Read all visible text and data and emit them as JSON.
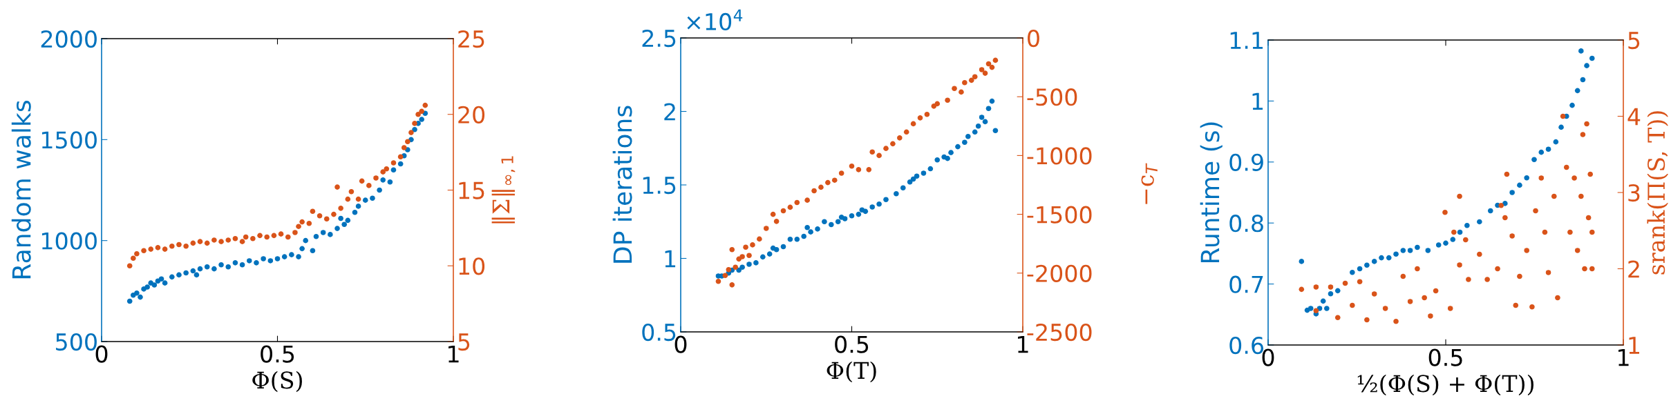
{
  "chart_data": [
    {
      "type": "scatter",
      "xlabel": "Φ(S)",
      "ylabel": "Random walks",
      "y2label": "‖Σ‖$_{∞,1}$",
      "marker": "circle",
      "grid": false,
      "xlim": [
        0,
        1
      ],
      "xticks": [
        0,
        0.5,
        1
      ],
      "ylim": [
        500,
        2000
      ],
      "yticks": [
        500,
        1000,
        1500,
        2000
      ],
      "y2lim": [
        5,
        25
      ],
      "y2ticks": [
        5,
        10,
        15,
        20,
        25
      ],
      "series": [
        {
          "axis": "y",
          "color": "#0072bd",
          "x": [
            0.08,
            0.09,
            0.1,
            0.11,
            0.12,
            0.13,
            0.14,
            0.15,
            0.16,
            0.17,
            0.18,
            0.2,
            0.22,
            0.24,
            0.26,
            0.27,
            0.28,
            0.3,
            0.32,
            0.34,
            0.36,
            0.38,
            0.4,
            0.42,
            0.44,
            0.46,
            0.48,
            0.5,
            0.52,
            0.54,
            0.56,
            0.57,
            0.58,
            0.6,
            0.61,
            0.63,
            0.65,
            0.67,
            0.68,
            0.69,
            0.7,
            0.72,
            0.73,
            0.75,
            0.77,
            0.79,
            0.8,
            0.82,
            0.83,
            0.85,
            0.86,
            0.87,
            0.88,
            0.89,
            0.9,
            0.91,
            0.92
          ],
          "values": [
            700,
            730,
            740,
            720,
            760,
            770,
            790,
            780,
            800,
            810,
            790,
            820,
            830,
            840,
            850,
            830,
            860,
            870,
            860,
            880,
            870,
            890,
            880,
            900,
            890,
            910,
            900,
            910,
            920,
            930,
            920,
            960,
            1000,
            950,
            1020,
            1040,
            1030,
            1060,
            1110,
            1080,
            1100,
            1140,
            1170,
            1200,
            1210,
            1250,
            1300,
            1290,
            1350,
            1380,
            1420,
            1450,
            1500,
            1550,
            1580,
            1600,
            1630
          ]
        },
        {
          "axis": "y2",
          "color": "#d95319",
          "x": [
            0.08,
            0.09,
            0.1,
            0.12,
            0.14,
            0.16,
            0.18,
            0.2,
            0.22,
            0.24,
            0.26,
            0.28,
            0.3,
            0.32,
            0.34,
            0.36,
            0.38,
            0.4,
            0.41,
            0.43,
            0.45,
            0.47,
            0.49,
            0.51,
            0.53,
            0.55,
            0.56,
            0.57,
            0.59,
            0.6,
            0.62,
            0.64,
            0.66,
            0.67,
            0.68,
            0.7,
            0.71,
            0.73,
            0.74,
            0.76,
            0.78,
            0.8,
            0.81,
            0.83,
            0.85,
            0.86,
            0.87,
            0.88,
            0.89,
            0.9,
            0.91,
            0.92
          ],
          "values": [
            10,
            10.5,
            10.8,
            11,
            11.1,
            11.2,
            11.1,
            11.3,
            11.4,
            11.3,
            11.5,
            11.6,
            11.5,
            11.7,
            11.6,
            11.7,
            11.8,
            11.6,
            11.9,
            11.8,
            12,
            11.9,
            12,
            12.1,
            11.9,
            12.2,
            12.6,
            12.9,
            12.8,
            13.6,
            13.3,
            13.1,
            13.4,
            15.2,
            13.8,
            14.4,
            14.9,
            14.4,
            15.6,
            15.3,
            15.8,
            16.2,
            16.4,
            16.8,
            17.2,
            17.8,
            18.2,
            18.8,
            19.4,
            20,
            20.2,
            20.6
          ]
        }
      ]
    },
    {
      "type": "scatter",
      "xlabel": "Φ(T)",
      "ylabel": "DP iterations",
      "y2label": "−c$_{T}$",
      "marker": "circle",
      "grid": false,
      "annotations": [
        "×10$^{4}$"
      ],
      "xlim": [
        0,
        1
      ],
      "xticks": [
        0,
        0.5,
        1
      ],
      "ylim": [
        0.5,
        2.5
      ],
      "yticks": [
        0.5,
        1,
        1.5,
        2,
        2.5
      ],
      "y2lim": [
        -2500,
        0
      ],
      "y2ticks": [
        -2500,
        -2000,
        -1500,
        -1000,
        -500,
        0
      ],
      "series": [
        {
          "axis": "y",
          "color": "#0072bd",
          "x": [
            0.11,
            0.12,
            0.14,
            0.15,
            0.16,
            0.17,
            0.18,
            0.2,
            0.22,
            0.24,
            0.26,
            0.27,
            0.28,
            0.3,
            0.32,
            0.34,
            0.36,
            0.37,
            0.38,
            0.4,
            0.42,
            0.44,
            0.46,
            0.47,
            0.48,
            0.5,
            0.52,
            0.53,
            0.54,
            0.56,
            0.58,
            0.6,
            0.63,
            0.65,
            0.67,
            0.68,
            0.69,
            0.71,
            0.73,
            0.75,
            0.77,
            0.78,
            0.79,
            0.81,
            0.83,
            0.84,
            0.86,
            0.87,
            0.88,
            0.89,
            0.9,
            0.91,
            0.92
          ],
          "values": [
            0.88,
            0.88,
            0.9,
            0.92,
            null,
            0.92,
            0.94,
            0.96,
            0.97,
            1.01,
            1.03,
            1.07,
            1.06,
            1.08,
            1.13,
            1.13,
            1.15,
            1.21,
            1.18,
            1.2,
            1.25,
            1.23,
            1.25,
            1.28,
            1.27,
            1.29,
            1.3,
            1.33,
            1.32,
            1.35,
            1.37,
            1.4,
            1.44,
            1.48,
            1.52,
            1.54,
            1.56,
            1.58,
            1.61,
            1.67,
            1.69,
            1.68,
            1.72,
            1.76,
            1.79,
            1.83,
            1.86,
            1.9,
            1.96,
            1.93,
            2.02,
            2.07,
            1.87
          ]
        },
        {
          "axis": "y2",
          "color": "#d95319",
          "x": [
            0.11,
            0.13,
            0.14,
            0.15,
            0.15,
            0.16,
            0.17,
            0.18,
            0.19,
            0.2,
            0.21,
            0.23,
            0.25,
            0.27,
            0.28,
            0.3,
            0.32,
            0.34,
            0.37,
            0.39,
            0.41,
            0.43,
            0.45,
            0.47,
            0.5,
            0.52,
            0.55,
            0.56,
            0.58,
            0.6,
            0.62,
            0.64,
            0.66,
            0.68,
            0.7,
            0.72,
            0.74,
            0.75,
            0.78,
            0.8,
            0.82,
            0.83,
            0.85,
            0.86,
            0.88,
            0.89,
            0.9,
            0.91,
            0.92
          ],
          "values": [
            -2070,
            -2020,
            -1970,
            -2100,
            -1800,
            -1950,
            -1880,
            -1860,
            -1780,
            -1850,
            -1760,
            -1710,
            -1620,
            -1500,
            -1560,
            -1470,
            -1440,
            -1400,
            -1380,
            -1300,
            -1270,
            -1230,
            -1210,
            -1150,
            -1090,
            -1120,
            -1120,
            -970,
            -1000,
            -940,
            -900,
            -850,
            -800,
            -730,
            -680,
            -650,
            -580,
            -560,
            -530,
            -430,
            -460,
            -380,
            -360,
            -330,
            -270,
            -300,
            -220,
            -250,
            -190
          ]
        }
      ]
    },
    {
      "type": "scatter",
      "xlabel": "½(Φ(S) + Φ(T))",
      "ylabel": "Runtime (s)",
      "y2label": "srank(Π(S, T))",
      "marker": "circle",
      "grid": false,
      "xlim": [
        0,
        1
      ],
      "xticks": [
        0,
        0.5,
        1
      ],
      "ylim": [
        0.6,
        1.1
      ],
      "yticks": [
        0.6,
        0.7,
        0.8,
        0.9,
        1,
        1.1
      ],
      "y2lim": [
        1,
        5
      ],
      "y2ticks": [
        1,
        2,
        3,
        4,
        5
      ],
      "series": [
        {
          "axis": "y",
          "color": "#0072bd",
          "x": [
            0.094,
            0.11,
            0.12,
            0.135,
            0.145,
            0.155,
            0.165,
            0.176,
            0.196,
            0.217,
            0.237,
            0.258,
            0.278,
            0.299,
            0.319,
            0.34,
            0.36,
            0.38,
            0.4,
            0.42,
            0.45,
            0.48,
            0.5,
            0.52,
            0.54,
            0.56,
            0.595,
            0.626,
            0.646,
            0.667,
            0.687,
            0.708,
            0.728,
            0.749,
            0.769,
            0.789,
            0.81,
            0.825,
            0.84,
            0.856,
            0.871,
            0.881,
            0.886,
            0.897,
            0.912
          ],
          "values": [
            0.737,
            0.657,
            0.66,
            0.651,
            0.66,
            0.672,
            0.66,
            0.684,
            0.689,
            null,
            0.719,
            0.725,
            0.731,
            0.737,
            0.743,
            0.743,
            0.749,
            0.755,
            0.755,
            0.76,
            0.755,
            0.764,
            0.767,
            0.773,
            0.785,
            0.796,
            0.802,
            0.82,
            0.829,
            0.832,
            0.85,
            0.862,
            0.874,
            0.904,
            0.916,
            0.921,
            0.933,
            0.957,
            0.975,
            0.993,
            1.017,
            1.082,
            1.035,
            1.058,
            1.07
          ]
        },
        {
          "axis": "y2",
          "color": "#d95319",
          "x": [
            0.094,
            0.135,
            0.176,
            0.217,
            0.258,
            0.135,
            0.196,
            0.237,
            0.278,
            0.299,
            0.33,
            0.36,
            0.38,
            0.4,
            0.42,
            0.44,
            0.457,
            0.472,
            0.498,
            0.513,
            0.523,
            0.539,
            0.539,
            0.556,
            0.564,
            0.595,
            0.617,
            0.646,
            0.656,
            0.667,
            0.672,
            0.687,
            0.697,
            0.708,
            0.728,
            0.743,
            0.753,
            0.769,
            0.779,
            0.789,
            0.805,
            0.815,
            0.83,
            0.84,
            0.85,
            0.862,
            0.871,
            0.881,
            0.886,
            0.891,
            0.897,
            0.902,
            0.907,
            0.912,
            0.912
          ],
          "values": [
            1.73,
            1.76,
            1.76,
            1.81,
            1.83,
            1.45,
            1.36,
            1.52,
            1.33,
            1.67,
            1.48,
            1.31,
            1.9,
            1.57,
            2.0,
            1.62,
            1.38,
            1.71,
            2.74,
            1.48,
            2.48,
            2.95,
            2.05,
            2.38,
            1.86,
            2.19,
            1.86,
            2.0,
            2.83,
            2.67,
            3.24,
            2.43,
            1.52,
            1.9,
            2.24,
            1.5,
            2.76,
            3.19,
            2.48,
            1.95,
            2.95,
            1.62,
            4.0,
            3.33,
            2.48,
            3.19,
            2.24,
            2.95,
            3.76,
            2.0,
            3.9,
            2.67,
            3.24,
            2.0,
            2.48
          ]
        }
      ]
    }
  ]
}
